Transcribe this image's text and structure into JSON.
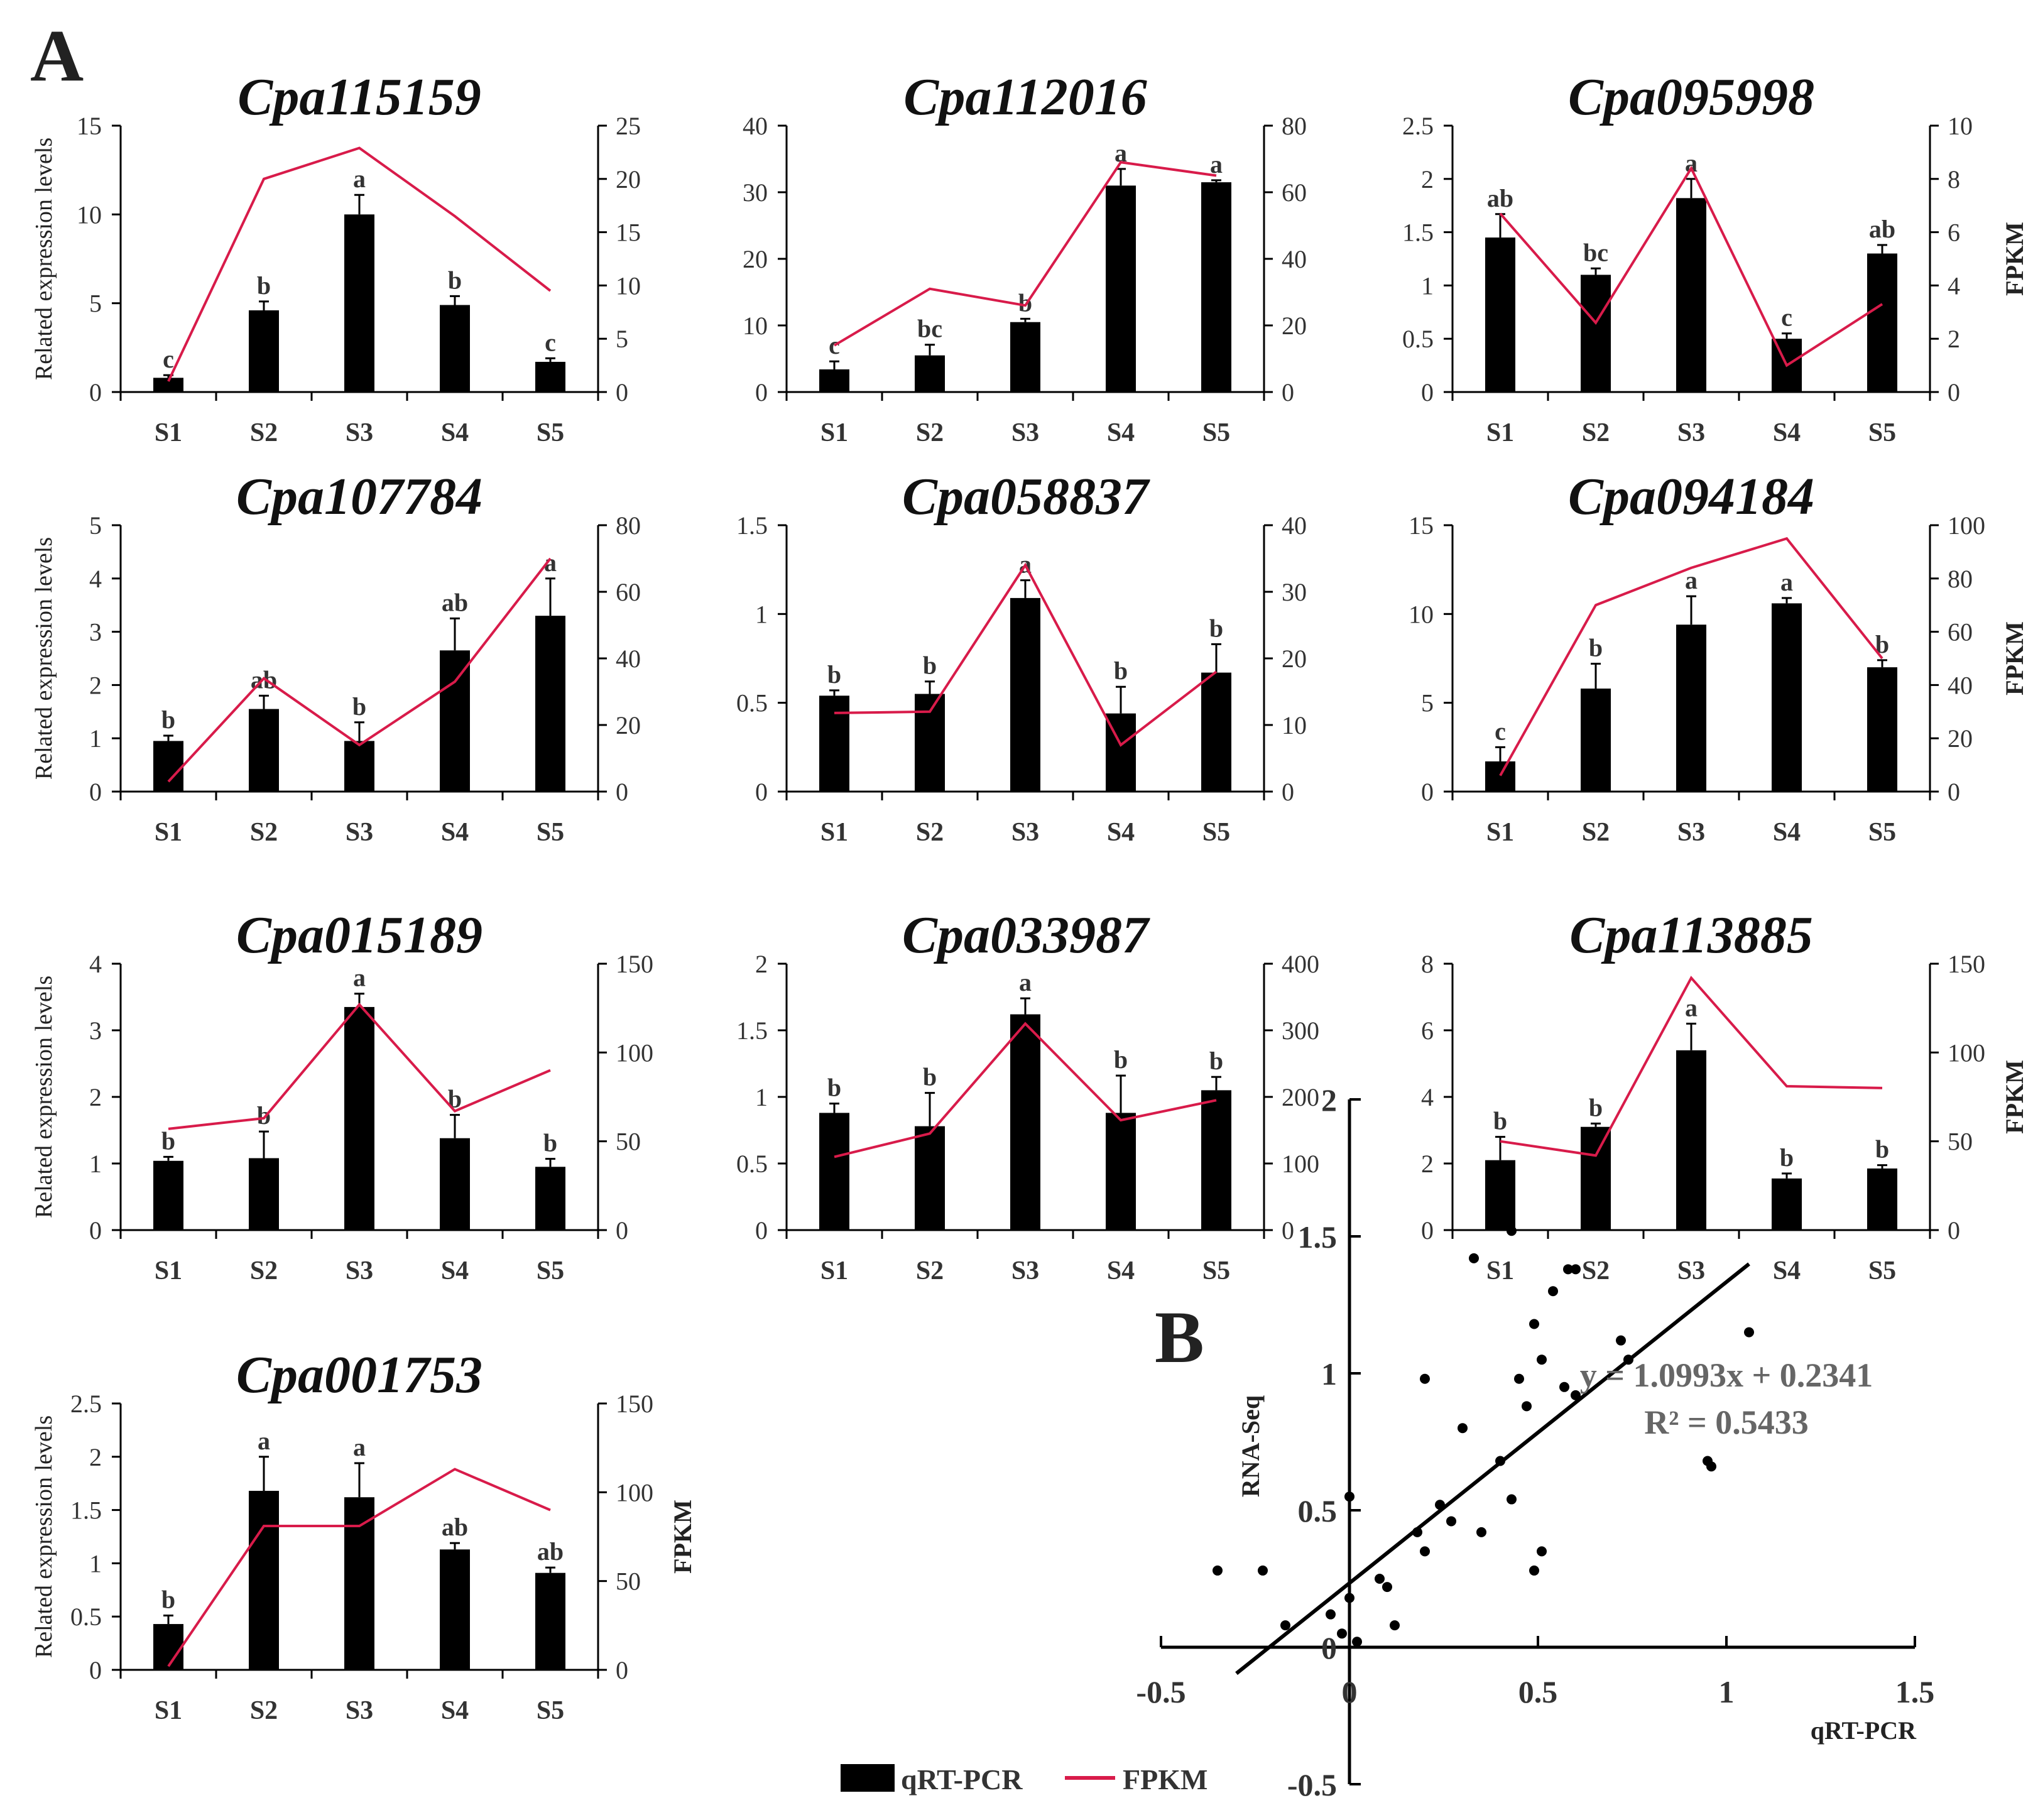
{
  "panel_labels": {
    "a": "A",
    "b": "B"
  },
  "colors": {
    "bar": "#000000",
    "line": "#d81b4a",
    "axis": "#000000",
    "text": "#333333",
    "eq": "#666666"
  },
  "legend": {
    "bar_label": "qRT-PCR",
    "line_label": "FPKM"
  },
  "chart_data": [
    {
      "type": "bar",
      "title": "Cpa115159",
      "categories": [
        "S1",
        "S2",
        "S3",
        "S4",
        "S5"
      ],
      "ylabel": "Related expression levels",
      "y2label": "",
      "ylim": [
        0,
        15
      ],
      "yticks": [
        0,
        5,
        10,
        15
      ],
      "y2lim": [
        0,
        25
      ],
      "y2ticks": [
        0,
        5,
        10,
        15,
        20,
        25
      ],
      "series": [
        {
          "name": "qRT-PCR",
          "axis": "left",
          "values": [
            0.8,
            4.6,
            10.0,
            4.9,
            1.7
          ],
          "errors": [
            0.15,
            0.5,
            1.1,
            0.5,
            0.2
          ],
          "letters": [
            "c",
            "b",
            "a",
            "b",
            "c"
          ]
        },
        {
          "name": "FPKM",
          "axis": "right",
          "values": [
            1.0,
            20.0,
            22.9,
            16.5,
            9.5
          ]
        }
      ]
    },
    {
      "type": "bar",
      "title": "Cpa112016",
      "categories": [
        "S1",
        "S2",
        "S3",
        "S4",
        "S5"
      ],
      "ylabel": "",
      "y2label": "",
      "ylim": [
        0,
        40
      ],
      "yticks": [
        0,
        10,
        20,
        30,
        40
      ],
      "y2lim": [
        0,
        80
      ],
      "y2ticks": [
        0,
        20,
        40,
        60,
        80
      ],
      "series": [
        {
          "name": "qRT-PCR",
          "axis": "left",
          "values": [
            3.4,
            5.5,
            10.5,
            31.0,
            31.5
          ],
          "errors": [
            1.2,
            1.6,
            0.5,
            2.5,
            0.3
          ],
          "letters": [
            "c",
            "bc",
            "b",
            "a",
            "a"
          ]
        },
        {
          "name": "FPKM",
          "axis": "right",
          "values": [
            14.0,
            31.0,
            26.0,
            69.0,
            65.0
          ]
        }
      ]
    },
    {
      "type": "bar",
      "title": "Cpa095998",
      "categories": [
        "S1",
        "S2",
        "S3",
        "S4",
        "S5"
      ],
      "ylabel": "",
      "y2label": "FPKM",
      "ylim": [
        0,
        2.5
      ],
      "yticks": [
        0,
        0.5,
        1,
        1.5,
        2,
        2.5
      ],
      "y2lim": [
        0,
        10
      ],
      "y2ticks": [
        0,
        2,
        4,
        6,
        8,
        10
      ],
      "series": [
        {
          "name": "qRT-PCR",
          "axis": "left",
          "values": [
            1.45,
            1.1,
            1.82,
            0.5,
            1.3
          ],
          "errors": [
            0.22,
            0.06,
            0.18,
            0.05,
            0.08
          ],
          "letters": [
            "ab",
            "bc",
            "a",
            "c",
            "ab"
          ]
        },
        {
          "name": "FPKM",
          "axis": "right",
          "values": [
            6.7,
            2.6,
            8.4,
            1.0,
            3.3
          ]
        }
      ]
    },
    {
      "type": "bar",
      "title": "Cpa107784",
      "categories": [
        "S1",
        "S2",
        "S3",
        "S4",
        "S5"
      ],
      "ylabel": "Related expression levels",
      "y2label": "",
      "ylim": [
        0,
        5
      ],
      "yticks": [
        0,
        1,
        2,
        3,
        4,
        5
      ],
      "y2lim": [
        0,
        80
      ],
      "y2ticks": [
        0,
        20,
        40,
        60,
        80
      ],
      "series": [
        {
          "name": "qRT-PCR",
          "axis": "left",
          "values": [
            0.95,
            1.55,
            0.95,
            2.65,
            3.3
          ],
          "errors": [
            0.1,
            0.25,
            0.35,
            0.6,
            0.7
          ],
          "letters": [
            "b",
            "ab",
            "b",
            "ab",
            "a"
          ]
        },
        {
          "name": "FPKM",
          "axis": "right",
          "values": [
            3.0,
            34.0,
            14.0,
            33.0,
            70.0
          ]
        }
      ]
    },
    {
      "type": "bar",
      "title": "Cpa058837",
      "categories": [
        "S1",
        "S2",
        "S3",
        "S4",
        "S5"
      ],
      "ylabel": "",
      "y2label": "",
      "ylim": [
        0,
        1.5
      ],
      "yticks": [
        0,
        0.5,
        1,
        1.5
      ],
      "y2lim": [
        0,
        40
      ],
      "y2ticks": [
        0,
        10,
        20,
        30,
        40
      ],
      "series": [
        {
          "name": "qRT-PCR",
          "axis": "left",
          "values": [
            0.54,
            0.55,
            1.09,
            0.44,
            0.67
          ],
          "errors": [
            0.03,
            0.07,
            0.1,
            0.15,
            0.16
          ],
          "letters": [
            "b",
            "b",
            "a",
            "b",
            "b"
          ]
        },
        {
          "name": "FPKM",
          "axis": "right",
          "values": [
            11.8,
            12.0,
            34.0,
            7.0,
            18.0
          ]
        }
      ]
    },
    {
      "type": "bar",
      "title": "Cpa094184",
      "categories": [
        "S1",
        "S2",
        "S3",
        "S4",
        "S5"
      ],
      "ylabel": "",
      "y2label": "FPKM",
      "ylim": [
        0,
        15
      ],
      "yticks": [
        0,
        5,
        10,
        15
      ],
      "y2lim": [
        0,
        100
      ],
      "y2ticks": [
        0,
        20,
        40,
        60,
        80,
        100
      ],
      "series": [
        {
          "name": "qRT-PCR",
          "axis": "left",
          "values": [
            1.7,
            5.8,
            9.4,
            10.6,
            7.0
          ],
          "errors": [
            0.8,
            1.4,
            1.6,
            0.3,
            0.4
          ],
          "letters": [
            "c",
            "b",
            "a",
            "a",
            "b"
          ]
        },
        {
          "name": "FPKM",
          "axis": "right",
          "values": [
            6.0,
            70.0,
            84.0,
            95.0,
            50.0
          ]
        }
      ]
    },
    {
      "type": "bar",
      "title": "Cpa015189",
      "categories": [
        "S1",
        "S2",
        "S3",
        "S4",
        "S5"
      ],
      "ylabel": "Related expression levels",
      "y2label": "",
      "ylim": [
        0,
        4
      ],
      "yticks": [
        0,
        1,
        2,
        3,
        4
      ],
      "y2lim": [
        0,
        150
      ],
      "y2ticks": [
        0,
        50,
        100,
        150
      ],
      "series": [
        {
          "name": "qRT-PCR",
          "axis": "left",
          "values": [
            1.04,
            1.08,
            3.35,
            1.38,
            0.95
          ],
          "errors": [
            0.06,
            0.4,
            0.2,
            0.35,
            0.12
          ],
          "letters": [
            "b",
            "b",
            "a",
            "b",
            "b"
          ]
        },
        {
          "name": "FPKM",
          "axis": "right",
          "values": [
            57.0,
            63.0,
            127.0,
            67.0,
            90.0
          ]
        }
      ]
    },
    {
      "type": "bar",
      "title": "Cpa033987",
      "categories": [
        "S1",
        "S2",
        "S3",
        "S4",
        "S5"
      ],
      "ylabel": "",
      "y2label": "",
      "ylim": [
        0,
        2
      ],
      "yticks": [
        0,
        0.5,
        1,
        1.5,
        2
      ],
      "y2lim": [
        0,
        400
      ],
      "y2ticks": [
        0,
        100,
        200,
        300,
        400
      ],
      "series": [
        {
          "name": "qRT-PCR",
          "axis": "left",
          "values": [
            0.88,
            0.78,
            1.62,
            0.88,
            1.05
          ],
          "errors": [
            0.07,
            0.25,
            0.12,
            0.28,
            0.1
          ],
          "letters": [
            "b",
            "b",
            "a",
            "b",
            "b"
          ]
        },
        {
          "name": "FPKM",
          "axis": "right",
          "values": [
            110.0,
            145.0,
            310.0,
            165.0,
            195.0
          ]
        }
      ]
    },
    {
      "type": "bar",
      "title": "Cpa113885",
      "categories": [
        "S1",
        "S2",
        "S3",
        "S4",
        "S5"
      ],
      "ylabel": "",
      "y2label": "FPKM",
      "ylim": [
        0,
        8
      ],
      "yticks": [
        0,
        2,
        4,
        6,
        8
      ],
      "y2lim": [
        0,
        150
      ],
      "y2ticks": [
        0,
        50,
        100,
        150
      ],
      "series": [
        {
          "name": "qRT-PCR",
          "axis": "left",
          "values": [
            2.1,
            3.1,
            5.4,
            1.55,
            1.85
          ],
          "errors": [
            0.7,
            0.1,
            0.8,
            0.15,
            0.1
          ],
          "letters": [
            "b",
            "b",
            "a",
            "b",
            "b"
          ]
        },
        {
          "name": "FPKM",
          "axis": "right",
          "values": [
            50.0,
            42.0,
            142.0,
            81.0,
            80.0
          ]
        }
      ]
    },
    {
      "type": "bar",
      "title": "Cpa001753",
      "categories": [
        "S1",
        "S2",
        "S3",
        "S4",
        "S5"
      ],
      "ylabel": "Related expression levels",
      "y2label": "FPKM",
      "ylim": [
        0,
        2.5
      ],
      "yticks": [
        0,
        0.5,
        1,
        1.5,
        2,
        2.5
      ],
      "y2lim": [
        0,
        150
      ],
      "y2ticks": [
        0,
        50,
        100,
        150
      ],
      "series": [
        {
          "name": "qRT-PCR",
          "axis": "left",
          "values": [
            0.43,
            1.68,
            1.62,
            1.13,
            0.91
          ],
          "errors": [
            0.08,
            0.32,
            0.32,
            0.06,
            0.05
          ],
          "letters": [
            "b",
            "a",
            "a",
            "ab",
            "ab"
          ]
        },
        {
          "name": "FPKM",
          "axis": "right",
          "values": [
            2.0,
            81.0,
            81.0,
            113.0,
            90.0
          ]
        }
      ]
    },
    {
      "type": "scatter",
      "title": "",
      "xlabel": "qRT-PCR",
      "ylabel": "RNA-Seq",
      "xlim": [
        -0.5,
        1.5
      ],
      "xticks": [
        -0.5,
        0,
        0.5,
        1,
        1.5
      ],
      "ylim": [
        -0.5,
        2
      ],
      "yticks": [
        -0.5,
        0,
        0.5,
        1,
        1.5,
        2
      ],
      "equation": "y = 1.0993x + 0.2341",
      "r2": "R² = 0.5433",
      "trendline": {
        "slope": 1.0993,
        "intercept": 0.2341,
        "x_range": [
          -0.3,
          1.06
        ]
      },
      "points": [
        [
          -0.35,
          0.28
        ],
        [
          -0.23,
          0.28
        ],
        [
          -0.17,
          0.08
        ],
        [
          -0.05,
          0.12
        ],
        [
          -0.02,
          0.05
        ],
        [
          0.0,
          0.18
        ],
        [
          0.0,
          0.55
        ],
        [
          0.02,
          0.02
        ],
        [
          0.08,
          0.25
        ],
        [
          0.1,
          0.22
        ],
        [
          0.12,
          0.08
        ],
        [
          0.18,
          0.42
        ],
        [
          0.2,
          0.35
        ],
        [
          0.2,
          0.98
        ],
        [
          0.24,
          0.52
        ],
        [
          0.27,
          0.46
        ],
        [
          0.3,
          0.8
        ],
        [
          0.33,
          1.42
        ],
        [
          0.35,
          0.42
        ],
        [
          0.4,
          0.68
        ],
        [
          0.43,
          1.52
        ],
        [
          0.43,
          0.54
        ],
        [
          0.45,
          0.98
        ],
        [
          0.47,
          0.88
        ],
        [
          0.49,
          1.18
        ],
        [
          0.49,
          0.28
        ],
        [
          0.51,
          0.35
        ],
        [
          0.51,
          1.05
        ],
        [
          0.54,
          1.3
        ],
        [
          0.57,
          0.95
        ],
        [
          0.58,
          1.38
        ],
        [
          0.6,
          1.38
        ],
        [
          0.6,
          0.92
        ],
        [
          0.72,
          1.12
        ],
        [
          0.74,
          1.05
        ],
        [
          0.95,
          0.68
        ],
        [
          0.96,
          0.66
        ],
        [
          1.06,
          1.15
        ]
      ]
    }
  ]
}
